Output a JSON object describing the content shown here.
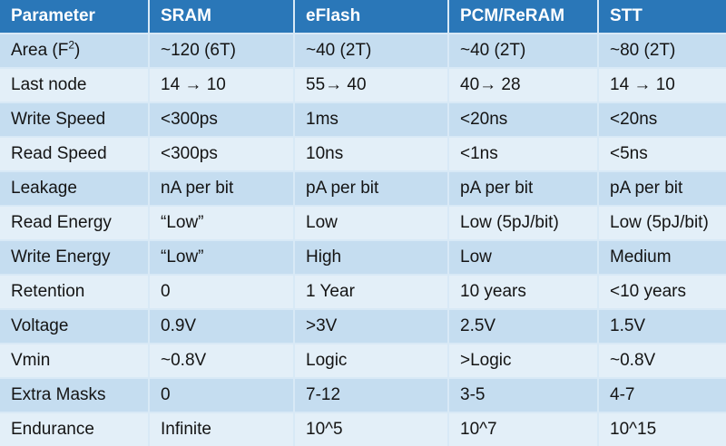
{
  "headers": [
    "Parameter",
    "SRAM",
    "eFlash",
    "PCM/ReRAM",
    "STT"
  ],
  "rows": [
    [
      "Area (F",
      "~120 (6T)",
      "~40 (2T)",
      "~40 (2T)",
      "~80 (2T)"
    ],
    [
      "Last node",
      "14 → 10",
      "55→ 40",
      "40→ 28",
      "14 → 10"
    ],
    [
      "Write Speed",
      "<300ps",
      "1ms",
      "<20ns",
      "<20ns"
    ],
    [
      "Read Speed",
      "<300ps",
      "10ns",
      "<1ns",
      "<5ns"
    ],
    [
      "Leakage",
      "nA per bit",
      "pA per bit",
      "pA per bit",
      "pA per bit"
    ],
    [
      "Read Energy",
      "“Low”",
      "Low",
      "Low (5pJ/bit)",
      "Low (5pJ/bit)"
    ],
    [
      "Write Energy",
      "“Low”",
      "High",
      "Low",
      "Medium"
    ],
    [
      "Retention",
      "0",
      "1 Year",
      "10 years",
      "<10 years"
    ],
    [
      "Voltage",
      "0.9V",
      ">3V",
      "2.5V",
      "1.5V"
    ],
    [
      "Vmin",
      "~0.8V",
      "Logic",
      ">Logic",
      "~0.8V"
    ],
    [
      "Extra Masks",
      "0",
      "7-12",
      "3-5",
      "4-7"
    ],
    [
      "Endurance",
      "Infinite",
      "10^5",
      "10^7",
      "10^15"
    ]
  ],
  "area_superscript": "2",
  "area_suffix": ")",
  "colors": {
    "header_bg": "#2a77b8",
    "row_odd": "#c5ddf0",
    "row_even": "#e3eff8",
    "grid": "#d8e9f6"
  }
}
